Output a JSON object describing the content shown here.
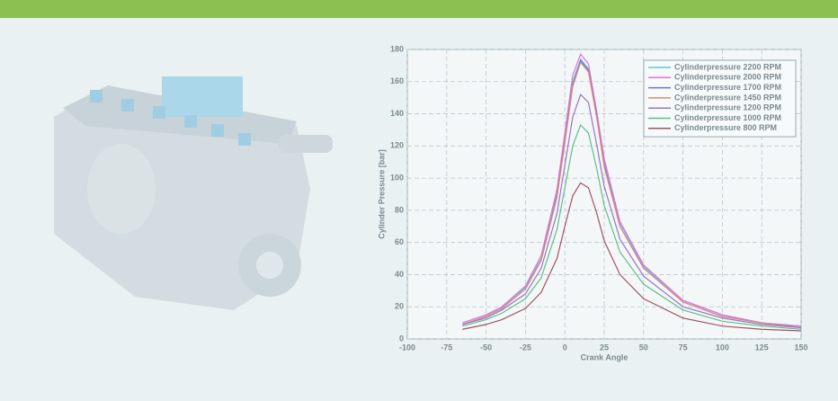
{
  "chart_data": {
    "type": "line",
    "x_label": "Crank Angle",
    "y_label": "Cylinder Pressure [bar]",
    "x": [
      -65,
      -50,
      -40,
      -25,
      -15,
      -5,
      0,
      5,
      10,
      15,
      20,
      25,
      35,
      50,
      75,
      100,
      125,
      150
    ],
    "series": [
      {
        "name": "Cylinderpressure 2200 RPM",
        "color": "#5ec6d6",
        "values": [
          10,
          15,
          20,
          32,
          50,
          90,
          125,
          160,
          174,
          168,
          140,
          110,
          72,
          45,
          24,
          15,
          10,
          8
        ]
      },
      {
        "name": "Cylinderpressure 2000 RPM",
        "color": "#de72de",
        "values": [
          10,
          15,
          20,
          33,
          52,
          93,
          128,
          164,
          177,
          171,
          143,
          112,
          73,
          46,
          24,
          15,
          10,
          8
        ]
      },
      {
        "name": "Cylinderpressure 1700 RPM",
        "color": "#6c72d6",
        "values": [
          9,
          14,
          19,
          31,
          49,
          89,
          123,
          158,
          173,
          167,
          140,
          108,
          70,
          44,
          23,
          14,
          10,
          7
        ]
      },
      {
        "name": "Cylinderpressure 1450 RPM",
        "color": "#dc8c74",
        "values": [
          9,
          14,
          19,
          31,
          49,
          88,
          122,
          157,
          172,
          166,
          139,
          107,
          70,
          44,
          23,
          14,
          10,
          7
        ]
      },
      {
        "name": "Cylinderpressure 1200 RPM",
        "color": "#9a74c6",
        "values": [
          9,
          13,
          18,
          28,
          44,
          78,
          108,
          138,
          152,
          147,
          122,
          95,
          62,
          39,
          20,
          13,
          9,
          7
        ]
      },
      {
        "name": "Cylinderpressure 1000 RPM",
        "color": "#62be84",
        "values": [
          8,
          12,
          16,
          25,
          38,
          68,
          94,
          120,
          133,
          128,
          107,
          83,
          54,
          34,
          18,
          11,
          8,
          6
        ]
      },
      {
        "name": "Cylinderpressure 800 RPM",
        "color": "#a25462",
        "values": [
          6,
          9,
          12,
          19,
          29,
          50,
          70,
          89,
          97,
          94,
          79,
          61,
          40,
          25,
          13,
          8,
          6,
          5
        ]
      }
    ],
    "xlim": [
      -100,
      150
    ],
    "xticks": [
      -100,
      -75,
      -50,
      -25,
      0,
      25,
      50,
      75,
      100,
      125,
      150
    ],
    "ylim": [
      0,
      180
    ],
    "yticks": [
      0,
      20,
      40,
      60,
      80,
      100,
      120,
      140,
      160,
      180
    ],
    "grid": true,
    "legend": "upper-right"
  }
}
